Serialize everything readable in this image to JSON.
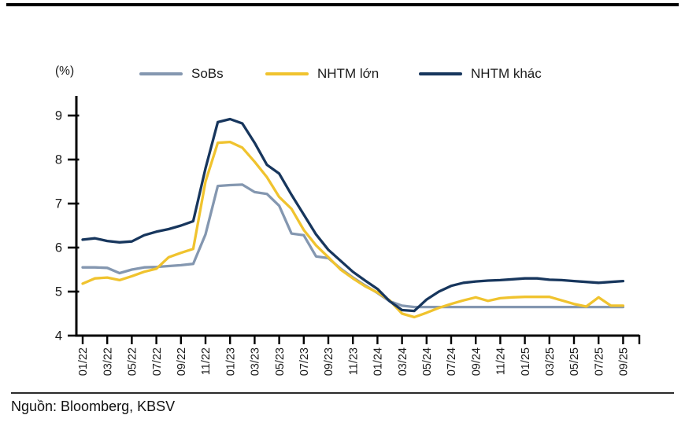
{
  "header": {
    "unit_label": "(%)"
  },
  "legend": [
    {
      "label": "SoBs",
      "color": "#8497b0"
    },
    {
      "label": "NHTM lớn",
      "color": "#f0c32e"
    },
    {
      "label": "NHTM khác",
      "color": "#17365d"
    }
  ],
  "footer": {
    "source": "Nguồn: Bloomberg, KBSV"
  },
  "colors": {
    "axis": "#000000",
    "tick_text": "#1a1a1a",
    "background": "#ffffff"
  },
  "chart_data": {
    "type": "line",
    "title": "",
    "xlabel": "",
    "ylabel": "(%)",
    "ylim": [
      4,
      9
    ],
    "grid": false,
    "legend_position": "top",
    "y_ticks": [
      9,
      8,
      7,
      6,
      5,
      4
    ],
    "x_tick_labels": [
      "01/22",
      "03/22",
      "05/22",
      "07/22",
      "09/22",
      "11/22",
      "01/23",
      "03/23",
      "05/23",
      "07/23",
      "09/23",
      "11/23",
      "01/24",
      "03/24",
      "05/24",
      "07/24",
      "09/24",
      "11/24",
      "01/25",
      "03/25",
      "05/25",
      "07/25",
      "09/25"
    ],
    "x": [
      "01/22",
      "02/22",
      "03/22",
      "04/22",
      "05/22",
      "06/22",
      "07/22",
      "08/22",
      "09/22",
      "10/22",
      "11/22",
      "12/22",
      "01/23",
      "02/23",
      "03/23",
      "04/23",
      "05/23",
      "06/23",
      "07/23",
      "08/23",
      "09/23",
      "10/23",
      "11/23",
      "12/23",
      "01/24",
      "02/24",
      "03/24",
      "04/24",
      "05/24",
      "06/24",
      "07/24",
      "08/24",
      "09/24",
      "10/24",
      "11/24",
      "12/24",
      "01/25",
      "02/25",
      "03/25",
      "04/25",
      "05/25",
      "06/25",
      "07/25",
      "08/25",
      "09/25"
    ],
    "series": [
      {
        "name": "SoBs",
        "color": "#8497b0",
        "values": [
          5.55,
          5.55,
          5.54,
          5.42,
          5.5,
          5.55,
          5.56,
          5.58,
          5.6,
          5.63,
          6.3,
          7.4,
          7.42,
          7.43,
          7.26,
          7.22,
          6.95,
          6.32,
          6.28,
          5.8,
          5.76,
          5.52,
          5.32,
          5.14,
          4.97,
          4.78,
          4.68,
          4.65,
          4.65,
          4.65,
          4.65,
          4.65,
          4.65,
          4.65,
          4.65,
          4.65,
          4.65,
          4.65,
          4.65,
          4.65,
          4.65,
          4.65,
          4.65,
          4.65,
          4.65
        ]
      },
      {
        "name": "NHTM lớn",
        "color": "#f0c32e",
        "values": [
          5.18,
          5.3,
          5.32,
          5.26,
          5.35,
          5.45,
          5.52,
          5.78,
          5.88,
          5.97,
          7.5,
          8.38,
          8.4,
          8.27,
          7.95,
          7.6,
          7.15,
          6.88,
          6.4,
          6.05,
          5.78,
          5.5,
          5.3,
          5.12,
          4.98,
          4.8,
          4.5,
          4.42,
          4.52,
          4.63,
          4.72,
          4.8,
          4.87,
          4.79,
          4.85,
          4.87,
          4.88,
          4.88,
          4.88,
          4.8,
          4.72,
          4.66,
          4.87,
          4.68,
          4.68
        ]
      },
      {
        "name": "NHTM khác",
        "color": "#17365d",
        "values": [
          6.18,
          6.21,
          6.15,
          6.12,
          6.14,
          6.28,
          6.36,
          6.42,
          6.5,
          6.6,
          7.8,
          8.85,
          8.92,
          8.82,
          8.38,
          7.88,
          7.68,
          7.2,
          6.75,
          6.3,
          5.95,
          5.7,
          5.45,
          5.25,
          5.06,
          4.78,
          4.58,
          4.56,
          4.82,
          5.0,
          5.13,
          5.2,
          5.23,
          5.25,
          5.26,
          5.28,
          5.3,
          5.3,
          5.27,
          5.26,
          5.24,
          5.22,
          5.2,
          5.22,
          5.24
        ]
      }
    ]
  }
}
